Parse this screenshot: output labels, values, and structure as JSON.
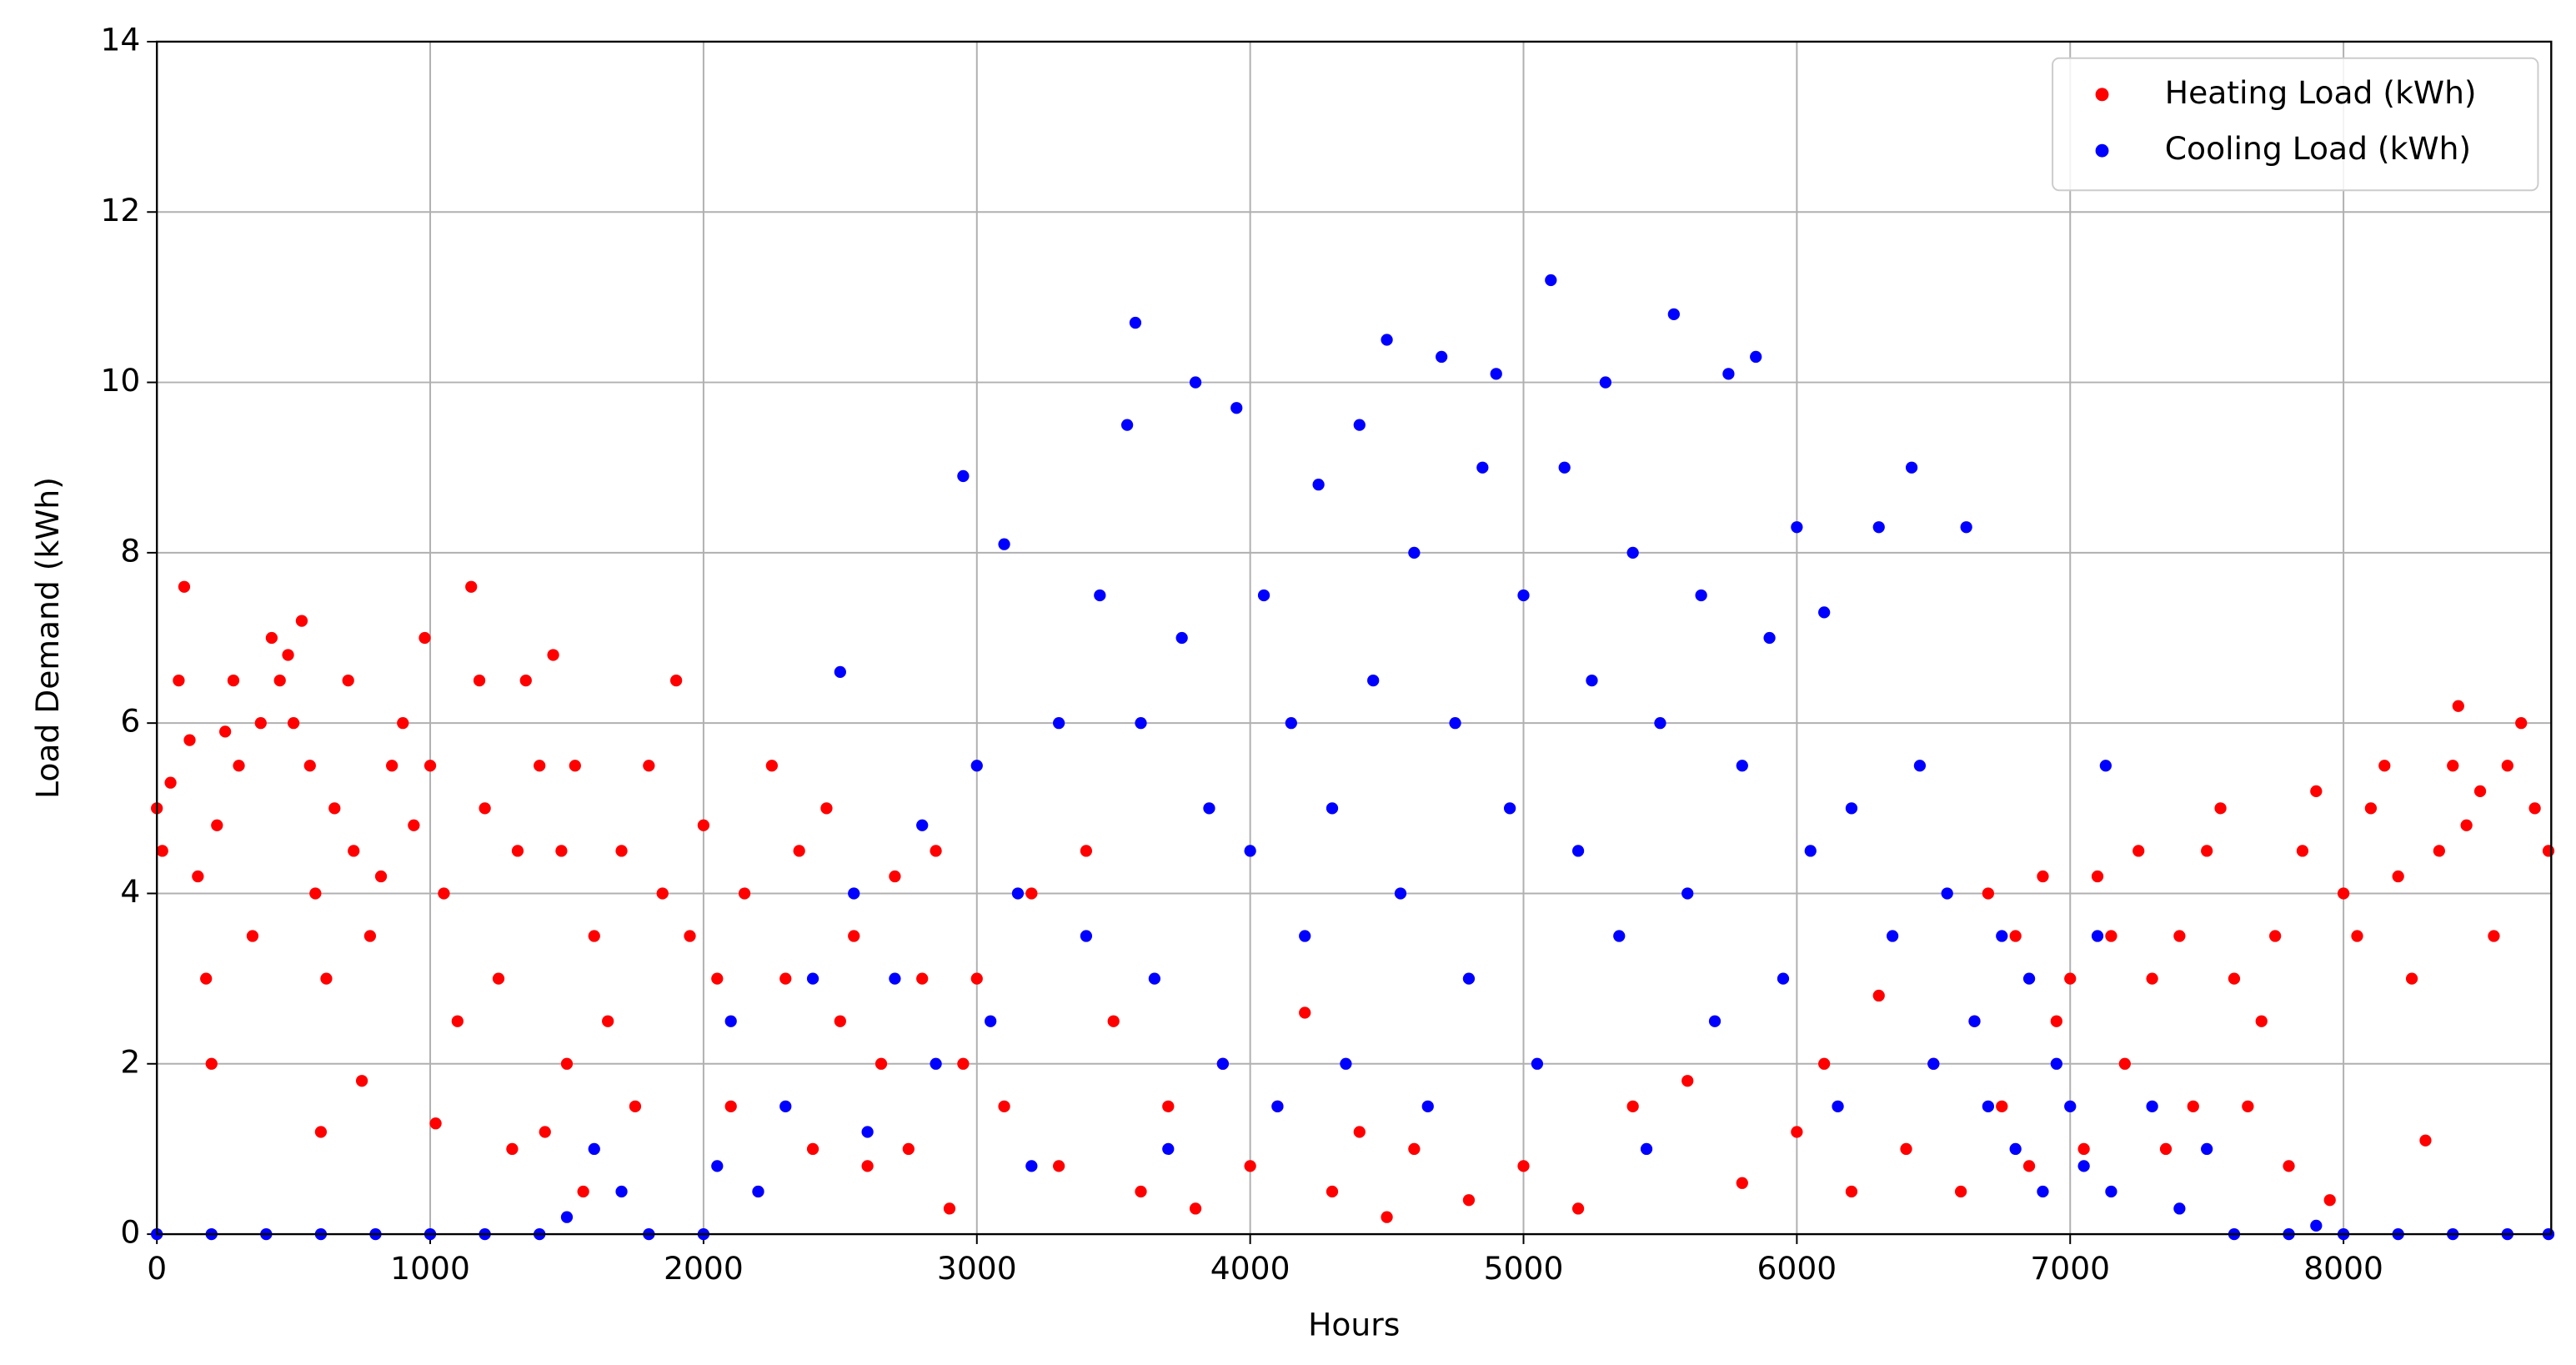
{
  "chart_data": {
    "type": "scatter",
    "x_label": "Hours",
    "y_label": "Load Demand (kWh)",
    "xlim": [
      0,
      8760
    ],
    "ylim": [
      0,
      14
    ],
    "xticks": [
      0,
      1000,
      2000,
      3000,
      4000,
      5000,
      6000,
      7000,
      8000
    ],
    "yticks": [
      0,
      2,
      4,
      6,
      8,
      10,
      12,
      14
    ],
    "grid": true,
    "legend": "upper right",
    "series": [
      {
        "name": "Heating Load (kWh)",
        "color": "#ff0000",
        "x": [
          0,
          20,
          50,
          80,
          100,
          120,
          150,
          180,
          200,
          220,
          250,
          280,
          300,
          350,
          380,
          420,
          450,
          480,
          500,
          530,
          560,
          580,
          600,
          620,
          650,
          700,
          720,
          750,
          780,
          820,
          860,
          900,
          940,
          980,
          1000,
          1020,
          1050,
          1100,
          1150,
          1180,
          1200,
          1250,
          1300,
          1320,
          1350,
          1400,
          1420,
          1450,
          1480,
          1500,
          1530,
          1560,
          1600,
          1650,
          1700,
          1750,
          1800,
          1850,
          1900,
          1950,
          2000,
          2050,
          2100,
          2150,
          2200,
          2250,
          2300,
          2350,
          2400,
          2450,
          2500,
          2550,
          2600,
          2650,
          2700,
          2750,
          2800,
          2850,
          2900,
          2950,
          3000,
          3100,
          3200,
          3300,
          3400,
          3500,
          3600,
          3700,
          3800,
          3900,
          4000,
          4100,
          4200,
          4300,
          4400,
          4500,
          4600,
          4800,
          5000,
          5200,
          5400,
          5600,
          5800,
          6000,
          6100,
          6200,
          6300,
          6400,
          6500,
          6600,
          6650,
          6700,
          6750,
          6800,
          6850,
          6900,
          6950,
          7000,
          7050,
          7100,
          7150,
          7200,
          7250,
          7300,
          7350,
          7400,
          7450,
          7500,
          7550,
          7600,
          7650,
          7700,
          7750,
          7800,
          7850,
          7900,
          7950,
          8000,
          8050,
          8100,
          8150,
          8200,
          8250,
          8300,
          8350,
          8400,
          8420,
          8450,
          8500,
          8550,
          8600,
          8650,
          8700,
          8750
        ],
        "values": [
          5.0,
          4.5,
          5.3,
          6.5,
          7.6,
          5.8,
          4.2,
          3.0,
          2.0,
          4.8,
          5.9,
          6.5,
          5.5,
          3.5,
          6.0,
          7.0,
          6.5,
          6.8,
          6.0,
          7.2,
          5.5,
          4.0,
          1.2,
          3.0,
          5.0,
          6.5,
          4.5,
          1.8,
          3.5,
          4.2,
          5.5,
          6.0,
          4.8,
          7.0,
          5.5,
          1.3,
          4.0,
          2.5,
          7.6,
          6.5,
          5.0,
          3.0,
          1.0,
          4.5,
          6.5,
          5.5,
          1.2,
          6.8,
          4.5,
          2.0,
          5.5,
          0.5,
          3.5,
          2.5,
          4.5,
          1.5,
          5.5,
          4.0,
          6.5,
          3.5,
          4.8,
          3.0,
          1.5,
          4.0,
          0.5,
          5.5,
          3.0,
          4.5,
          1.0,
          5.0,
          2.5,
          3.5,
          0.8,
          2.0,
          4.2,
          1.0,
          3.0,
          4.5,
          0.3,
          2.0,
          3.0,
          1.5,
          4.0,
          0.8,
          4.5,
          2.5,
          0.5,
          1.5,
          0.3,
          2.0,
          0.8,
          1.5,
          2.6,
          0.5,
          1.2,
          0.2,
          1.0,
          0.4,
          0.8,
          0.3,
          1.5,
          1.8,
          0.6,
          1.2,
          2.0,
          0.5,
          2.8,
          1.0,
          2.0,
          0.5,
          2.5,
          4.0,
          1.5,
          3.5,
          0.8,
          4.2,
          2.5,
          3.0,
          1.0,
          4.2,
          3.5,
          2.0,
          4.5,
          3.0,
          1.0,
          3.5,
          1.5,
          4.5,
          5.0,
          3.0,
          1.5,
          2.5,
          3.5,
          0.8,
          4.5,
          5.2,
          0.4,
          4.0,
          3.5,
          5.0,
          5.5,
          4.2,
          3.0,
          1.1,
          4.5,
          5.5,
          6.2,
          4.8,
          5.2,
          3.5,
          5.5,
          6.0,
          5.0,
          4.5
        ]
      },
      {
        "name": "Cooling Load (kWh)",
        "color": "#0000ff",
        "x": [
          0,
          200,
          400,
          600,
          800,
          1000,
          1200,
          1400,
          1500,
          1600,
          1700,
          1800,
          2000,
          2050,
          2100,
          2200,
          2300,
          2400,
          2500,
          2550,
          2600,
          2700,
          2800,
          2850,
          2950,
          3000,
          3050,
          3100,
          3150,
          3200,
          3300,
          3400,
          3450,
          3550,
          3580,
          3600,
          3650,
          3700,
          3750,
          3800,
          3850,
          3900,
          3950,
          4000,
          4050,
          4100,
          4150,
          4200,
          4250,
          4300,
          4350,
          4400,
          4450,
          4500,
          4550,
          4600,
          4650,
          4700,
          4750,
          4800,
          4850,
          4900,
          4950,
          5000,
          5050,
          5100,
          5150,
          5200,
          5250,
          5300,
          5350,
          5400,
          5450,
          5500,
          5550,
          5600,
          5650,
          5700,
          5750,
          5800,
          5850,
          5900,
          5950,
          6000,
          6050,
          6100,
          6150,
          6200,
          6300,
          6350,
          6420,
          6450,
          6500,
          6550,
          6620,
          6650,
          6700,
          6750,
          6800,
          6850,
          6900,
          6950,
          7000,
          7050,
          7100,
          7130,
          7150,
          7300,
          7400,
          7500,
          7600,
          7800,
          7900,
          8000,
          8200,
          8400,
          8600,
          8750
        ],
        "values": [
          0,
          0,
          0,
          0,
          0,
          0,
          0,
          0,
          0.2,
          1.0,
          0.5,
          0,
          0,
          0.8,
          2.5,
          0.5,
          1.5,
          3.0,
          6.6,
          4.0,
          1.2,
          3.0,
          4.8,
          2.0,
          8.9,
          5.5,
          2.5,
          8.1,
          4.0,
          0.8,
          6.0,
          3.5,
          7.5,
          9.5,
          10.7,
          6.0,
          3.0,
          1.0,
          7.0,
          10.0,
          5.0,
          2.0,
          9.7,
          4.5,
          7.5,
          1.5,
          6.0,
          3.5,
          8.8,
          5.0,
          2.0,
          9.5,
          6.5,
          10.5,
          4.0,
          8.0,
          1.5,
          10.3,
          6.0,
          3.0,
          9.0,
          10.1,
          5.0,
          7.5,
          2.0,
          11.2,
          9.0,
          4.5,
          6.5,
          10.0,
          3.5,
          8.0,
          1.0,
          6.0,
          10.8,
          4.0,
          7.5,
          2.5,
          10.1,
          5.5,
          10.3,
          7.0,
          3.0,
          8.3,
          4.5,
          7.3,
          1.5,
          5.0,
          8.3,
          3.5,
          9.0,
          5.5,
          2.0,
          4.0,
          8.3,
          2.5,
          1.5,
          3.5,
          1.0,
          3.0,
          0.5,
          2.0,
          1.5,
          0.8,
          3.5,
          5.5,
          0.5,
          1.5,
          0.3,
          1.0,
          0,
          0,
          0.1,
          0,
          0,
          0,
          0,
          0
        ]
      }
    ]
  }
}
